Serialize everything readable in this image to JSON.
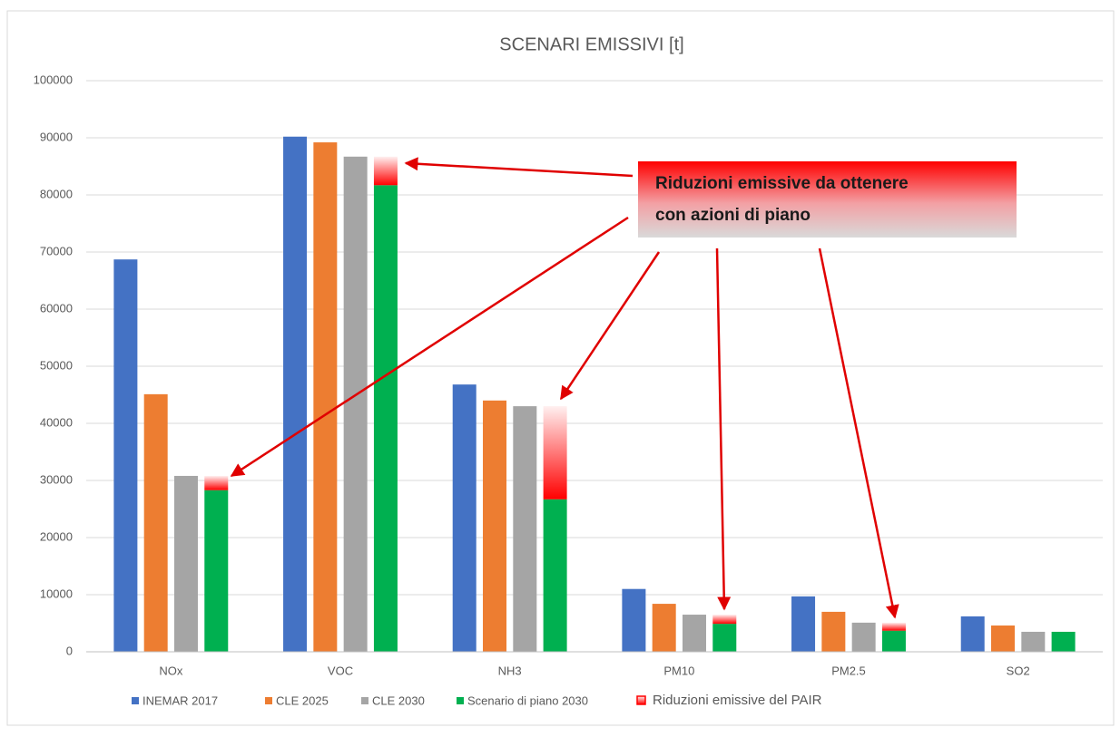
{
  "chart_data": {
    "type": "bar",
    "title": "SCENARI EMISSIVI [t]",
    "categories": [
      "NOx",
      "VOC",
      "NH3",
      "PM10",
      "PM2.5",
      "SO2"
    ],
    "series": [
      {
        "name": "INEMAR 2017",
        "color": "#4472c4",
        "values": [
          68700,
          90200,
          46800,
          11000,
          9700,
          6200
        ]
      },
      {
        "name": "CLE 2025",
        "color": "#ed7d31",
        "values": [
          45100,
          89200,
          44000,
          8400,
          7000,
          4600
        ]
      },
      {
        "name": "CLE 2030",
        "color": "#a5a5a5",
        "values": [
          30800,
          86700,
          43000,
          6500,
          5100,
          3500
        ]
      },
      {
        "name": "Scenario di piano 2030",
        "color": "#00b050",
        "values": [
          28300,
          81700,
          26700,
          4900,
          3700,
          3500
        ]
      },
      {
        "name": "Riduzioni emissive del PAIR",
        "color": "#ff0000",
        "stacked": true,
        "values": [
          2500,
          5000,
          16300,
          1600,
          1400,
          null
        ]
      }
    ],
    "annotation": [
      "Riduzioni emissive da ottenere",
      "con azioni di piano"
    ],
    "ylim": [
      0,
      100000
    ],
    "yticks": [
      0,
      10000,
      20000,
      30000,
      40000,
      50000,
      60000,
      70000,
      80000,
      90000,
      100000
    ],
    "grid": true
  }
}
